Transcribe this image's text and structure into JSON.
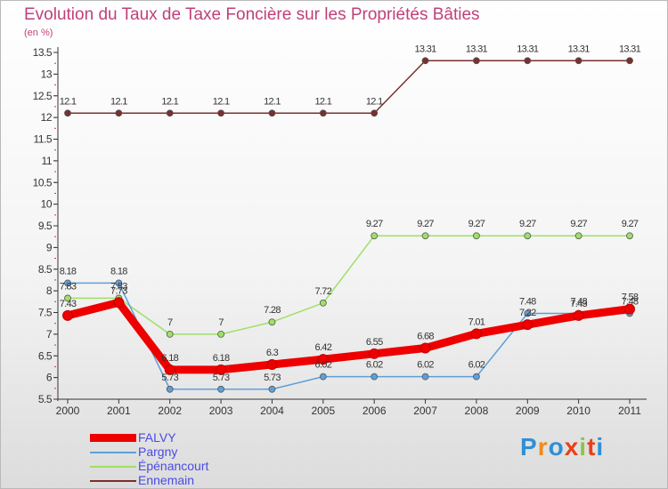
{
  "title": "Evolution du Taux de Taxe Foncière sur les Propriétés Bâties",
  "unit_label": "(en %)",
  "logo_text": "Proxiti",
  "chart_data": {
    "type": "line",
    "title": "Evolution du Taux de Taxe Foncière sur les Propriétés Bâties",
    "ylabel": "(en %)",
    "xlabel": "",
    "x": [
      "2000",
      "2001",
      "2002",
      "2003",
      "2004",
      "2005",
      "2006",
      "2007",
      "2008",
      "2009",
      "2010",
      "2011"
    ],
    "y_ticks": [
      "5.5",
      "6",
      "6.5",
      "7",
      "7.5",
      "8",
      "8.5",
      "9",
      "9.5",
      "10",
      "10.5",
      "11",
      "11.5",
      "12",
      "12.5",
      "13",
      "13.5"
    ],
    "ylim": [
      5.5,
      13.5
    ],
    "grid": false,
    "legend_position": "bottom-left",
    "series": [
      {
        "name": "FALVY",
        "color": "#ee0000",
        "values": [
          7.43,
          7.73,
          6.18,
          6.18,
          6.3,
          6.42,
          6.55,
          6.68,
          7.01,
          7.22,
          7.43,
          7.58
        ],
        "labels": [
          "7.43",
          "7.73",
          "6.18",
          "6.18",
          "6.3",
          "6.42",
          "6.55",
          "6.68",
          "7.01",
          "7.22",
          "7.43",
          "7.58"
        ]
      },
      {
        "name": "Pargny",
        "color": "#5f9fd8",
        "values": [
          8.18,
          8.18,
          5.73,
          5.73,
          5.73,
          6.02,
          6.02,
          6.02,
          6.02,
          7.48,
          7.48,
          7.48
        ],
        "labels": [
          "8.18",
          "8.18",
          "5.73",
          "5.73",
          "5.73",
          "6.02",
          "6.02",
          "6.02",
          "6.02",
          "7.48",
          "7.48",
          "7.48"
        ]
      },
      {
        "name": "Épénancourt",
        "color": "#9ee066",
        "values": [
          7.83,
          7.83,
          7,
          7,
          7.28,
          7.72,
          9.27,
          9.27,
          9.27,
          9.27,
          9.27,
          9.27
        ],
        "labels": [
          "7.83",
          "7.83",
          "7",
          "7",
          "7.28",
          "7.72",
          "9.27",
          "9.27",
          "9.27",
          "9.27",
          "9.27",
          "9.27"
        ]
      },
      {
        "name": "Ennemain",
        "color": "#7a2f2f",
        "values": [
          12.1,
          12.1,
          12.1,
          12.1,
          12.1,
          12.1,
          12.1,
          13.31,
          13.31,
          13.31,
          13.31,
          13.31
        ],
        "labels": [
          "12.1",
          "12.1",
          "12.1",
          "12.1",
          "12.1",
          "12.1",
          "12.1",
          "13.31",
          "13.31",
          "13.31",
          "13.31",
          "13.31"
        ]
      }
    ]
  }
}
